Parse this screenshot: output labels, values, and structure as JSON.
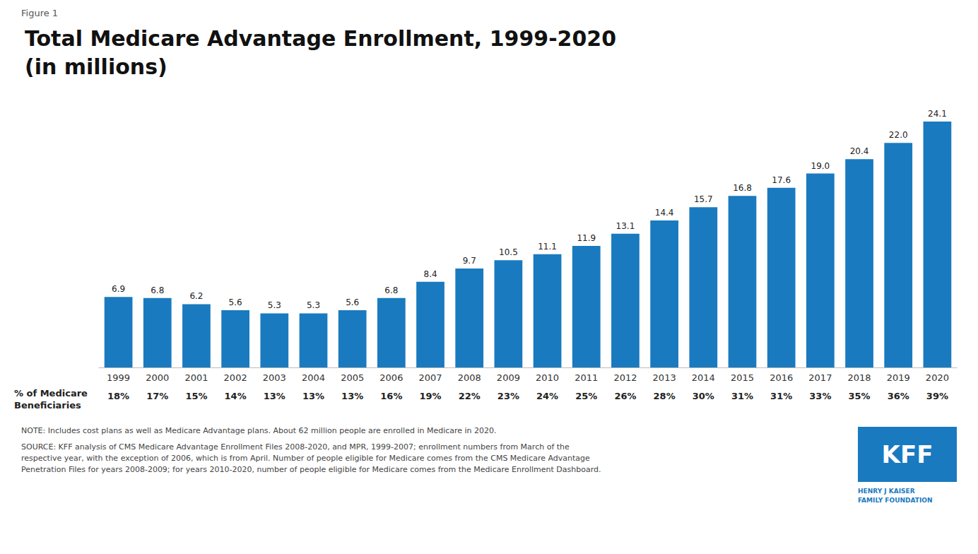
{
  "chart_data": {
    "type": "bar",
    "figure_label": "Figure 1",
    "title": "Total Medicare Advantage Enrollment, 1999-2020",
    "subtitle": "(in millions)",
    "categories": [
      "1999",
      "2000",
      "2001",
      "2002",
      "2003",
      "2004",
      "2005",
      "2006",
      "2007",
      "2008",
      "2009",
      "2010",
      "2011",
      "2012",
      "2013",
      "2014",
      "2015",
      "2016",
      "2017",
      "2018",
      "2019",
      "2020"
    ],
    "values": [
      6.9,
      6.8,
      6.2,
      5.6,
      5.3,
      5.3,
      5.6,
      6.8,
      8.4,
      9.7,
      10.5,
      11.1,
      11.9,
      13.1,
      14.4,
      15.7,
      16.8,
      17.6,
      19.0,
      20.4,
      22.0,
      24.1
    ],
    "value_labels": [
      "6.9",
      "6.8",
      "6.2",
      "5.6",
      "5.3",
      "5.3",
      "5.6",
      "6.8",
      "8.4",
      "9.7",
      "10.5",
      "11.1",
      "11.9",
      "13.1",
      "14.4",
      "15.7",
      "16.8",
      "17.6",
      "19.0",
      "20.4",
      "22.0",
      "24.1"
    ],
    "color": "#1a7abf",
    "ylim": [
      0,
      27
    ],
    "grid": false,
    "tick_labels": "x",
    "data_labels": true,
    "share_of_beneficiaries": {
      "label": "% of Medicare\nBeneficiaries",
      "values": [
        18,
        17,
        15,
        14,
        13,
        13,
        13,
        16,
        19,
        22,
        23,
        24,
        25,
        26,
        28,
        30,
        31,
        31,
        33,
        35,
        36,
        39
      ],
      "value_labels": [
        "18%",
        "17%",
        "15%",
        "14%",
        "13%",
        "13%",
        "13%",
        "16%",
        "19%",
        "22%",
        "23%",
        "24%",
        "25%",
        "26%",
        "28%",
        "30%",
        "31%",
        "31%",
        "33%",
        "35%",
        "36%",
        "39%"
      ]
    },
    "note": "NOTE: Includes cost plans as well as Medicare Advantage plans. About 62 million people are enrolled in Medicare in 2020.",
    "source": "SOURCE: KFF analysis of CMS Medicare Advantage Enrollment Files 2008-2020, and MPR, 1999-2007; enrollment numbers from March of the\nrespective year, with the exception of 2006, which is from April. Number of people eligible for Medicare comes from the CMS Medicare Advantage\nPenetration Files for years 2008-2009; for years 2010-2020, number of people eligible for Medicare comes from the Medicare Enrollment Dashboard.",
    "logo": {
      "text": "KFF",
      "subtitle": "HENRY J KAISER\nFAMILY FOUNDATION",
      "color": "#1a7abf"
    }
  }
}
